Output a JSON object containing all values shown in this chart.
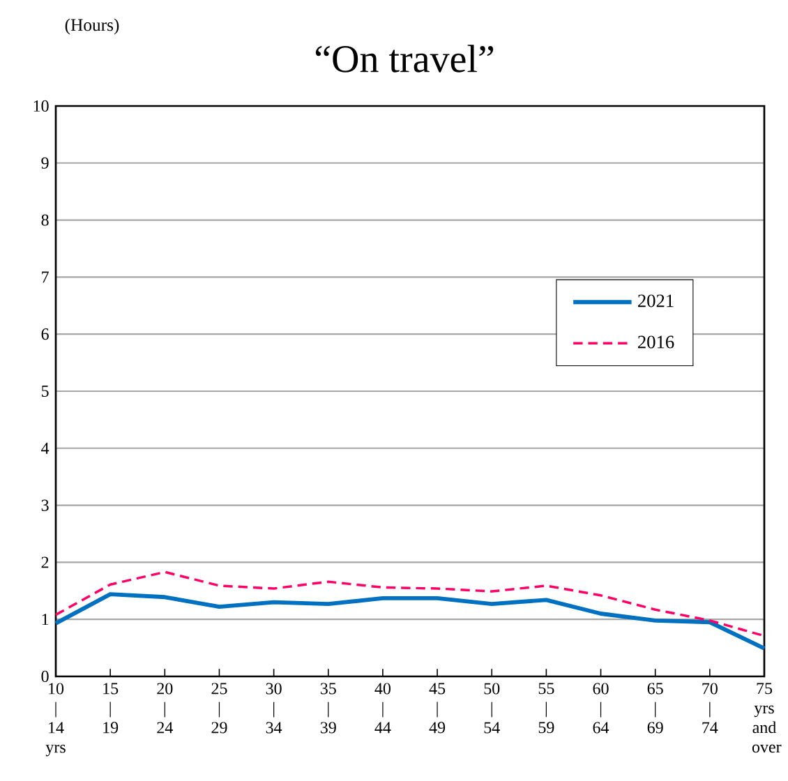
{
  "chart_data": {
    "type": "line",
    "title": "“On travel”",
    "ylabel": "(Hours)",
    "categories": [
      "10 | 14 yrs",
      "15 | 19",
      "20 | 24",
      "25 | 29",
      "30 | 34",
      "35 | 39",
      "40 | 44",
      "45 | 49",
      "50 | 54",
      "55 | 59",
      "60 | 64",
      "65 | 69",
      "70 | 74",
      "75 yrs and over"
    ],
    "series": [
      {
        "name": "2021",
        "color": "#0070c0",
        "line_style": "solid",
        "values": [
          0.93,
          1.44,
          1.39,
          1.22,
          1.3,
          1.27,
          1.37,
          1.37,
          1.27,
          1.34,
          1.1,
          0.98,
          0.95,
          0.49
        ]
      },
      {
        "name": "2016",
        "color": "#ff0066",
        "line_style": "dashed",
        "values": [
          1.08,
          1.61,
          1.83,
          1.59,
          1.54,
          1.66,
          1.56,
          1.54,
          1.49,
          1.59,
          1.42,
          1.17,
          0.98,
          0.71
        ]
      }
    ],
    "ylim": [
      0,
      10
    ],
    "yticks": [
      0,
      1,
      2,
      3,
      4,
      5,
      6,
      7,
      8,
      9,
      10
    ],
    "grid": "y",
    "legend": "right"
  }
}
